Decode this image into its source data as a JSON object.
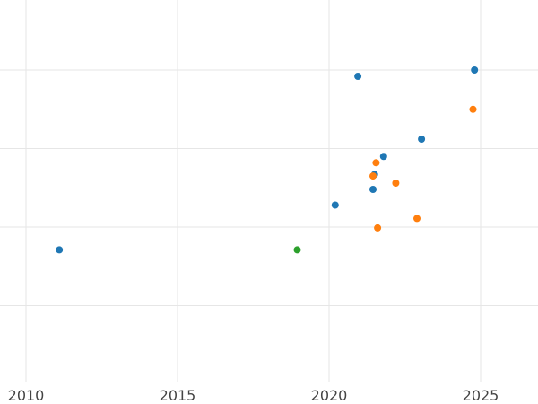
{
  "chart_data": {
    "type": "scatter",
    "title": "",
    "xlabel": "",
    "ylabel": "",
    "xlim": [
      2009.85,
      2026.9
    ],
    "ylim": [
      0,
      5
    ],
    "x_ticks": [
      2010,
      2015,
      2020,
      2025
    ],
    "x_tick_labels": [
      "2010",
      "2015",
      "2020",
      "2025"
    ],
    "y_gridlines": [
      1,
      2,
      3,
      4
    ],
    "y_tick_labels_visible": false,
    "grid": true,
    "legend": "none",
    "series": [
      {
        "color": "#1f77b4",
        "points": [
          {
            "x": 2011.1,
            "y": 1.71
          },
          {
            "x": 2020.2,
            "y": 2.28
          },
          {
            "x": 2020.95,
            "y": 3.92
          },
          {
            "x": 2021.45,
            "y": 2.48
          },
          {
            "x": 2021.5,
            "y": 2.67
          },
          {
            "x": 2021.8,
            "y": 2.9
          },
          {
            "x": 2023.05,
            "y": 3.12
          },
          {
            "x": 2024.8,
            "y": 4.0
          }
        ]
      },
      {
        "color": "#ff7f0e",
        "points": [
          {
            "x": 2021.45,
            "y": 2.65
          },
          {
            "x": 2021.55,
            "y": 2.82
          },
          {
            "x": 2021.6,
            "y": 1.99
          },
          {
            "x": 2022.2,
            "y": 2.56
          },
          {
            "x": 2022.9,
            "y": 2.11
          },
          {
            "x": 2024.75,
            "y": 3.5
          }
        ]
      },
      {
        "color": "#2ca02c",
        "points": [
          {
            "x": 2018.95,
            "y": 1.71
          }
        ]
      }
    ]
  }
}
